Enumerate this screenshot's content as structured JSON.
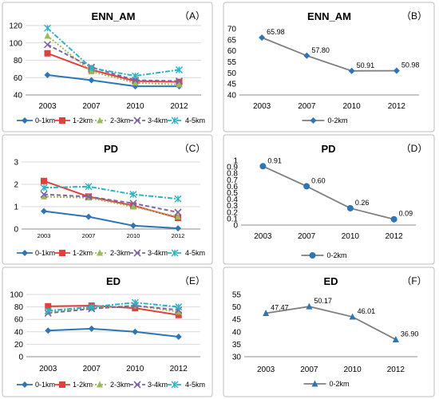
{
  "figure": {
    "width": 550,
    "height": 500
  },
  "chart_data": [
    {
      "panel_label": "（A）",
      "type": "line",
      "title": "ENN_AM",
      "categories": [
        "2003",
        "2007",
        "2010",
        "2012"
      ],
      "ylim": [
        40,
        120
      ],
      "yticks": [
        40,
        60,
        80,
        100,
        120
      ],
      "grid": true,
      "legend": "bottom",
      "series": [
        {
          "name": "0-1km",
          "values": [
            63,
            57,
            50,
            50
          ],
          "color": "#2e75b6",
          "marker": "diamond",
          "dash": "solid"
        },
        {
          "name": "1-2km",
          "values": [
            88,
            69,
            56,
            55
          ],
          "color": "#e0413f",
          "marker": "square",
          "dash": "solid"
        },
        {
          "name": "2-3km",
          "values": [
            108,
            67,
            54,
            52
          ],
          "color": "#9bbb59",
          "marker": "triangle",
          "dash": "dot"
        },
        {
          "name": "3-4km",
          "values": [
            98,
            72,
            57,
            56
          ],
          "color": "#8064a2",
          "marker": "x",
          "dash": "dash"
        },
        {
          "name": "4-5km",
          "values": [
            117,
            71,
            62,
            69
          ],
          "color": "#29b5c6",
          "marker": "star",
          "dash": "dashdot"
        }
      ]
    },
    {
      "panel_label": "（B）",
      "type": "line",
      "title": "ENN_AM",
      "categories": [
        "2003",
        "2007",
        "2010",
        "2012"
      ],
      "ylim": [
        40,
        70
      ],
      "yticks": [
        40,
        45,
        50,
        55,
        60,
        65,
        70
      ],
      "grid": false,
      "legend": "bottom",
      "series": [
        {
          "name": "0-2km",
          "values": [
            65.98,
            57.8,
            50.91,
            50.98
          ],
          "labels": [
            "65.98",
            "57.80",
            "50.91",
            "50.98"
          ],
          "color": "#7f7f7f",
          "marker": "diamond",
          "marker_color": "#2e75b6",
          "dash": "solid"
        }
      ]
    },
    {
      "panel_label": "（C）",
      "type": "line",
      "title": "PD",
      "categories": [
        "2003",
        "2007",
        "2010",
        "2012"
      ],
      "ylim": [
        0,
        3
      ],
      "yticks": [
        0,
        1,
        2,
        3
      ],
      "grid": true,
      "legend": "bottom",
      "series": [
        {
          "name": "0-1km",
          "values": [
            0.8,
            0.55,
            0.15,
            0.03
          ],
          "color": "#2e75b6",
          "marker": "diamond",
          "dash": "solid"
        },
        {
          "name": "1-2km",
          "values": [
            2.15,
            1.45,
            1.05,
            0.5
          ],
          "color": "#e0413f",
          "marker": "square",
          "dash": "solid"
        },
        {
          "name": "2-3km",
          "values": [
            1.45,
            1.4,
            1.0,
            0.55
          ],
          "color": "#9bbb59",
          "marker": "triangle",
          "dash": "dot"
        },
        {
          "name": "3-4km",
          "values": [
            1.55,
            1.45,
            1.15,
            0.75
          ],
          "color": "#8064a2",
          "marker": "x",
          "dash": "dash"
        },
        {
          "name": "4-5km",
          "values": [
            1.85,
            1.9,
            1.55,
            1.35
          ],
          "color": "#29b5c6",
          "marker": "star",
          "dash": "dashdot"
        }
      ]
    },
    {
      "panel_label": "（D）",
      "type": "line",
      "title": "PD",
      "categories": [
        "2003",
        "2007",
        "2010",
        "2012"
      ],
      "ylim": [
        0,
        1
      ],
      "yticks": [
        0,
        0.1,
        0.2,
        0.3,
        0.4,
        0.5,
        0.6,
        0.7,
        0.8,
        0.9,
        1
      ],
      "ytick_labels": [
        "0",
        "0.1",
        "0.2",
        "0.3",
        "0.4",
        "0.5",
        "0.6",
        "0.7",
        "0.8",
        "0.9",
        "1"
      ],
      "grid": false,
      "legend": "bottom",
      "series": [
        {
          "name": "0-2km",
          "values": [
            0.91,
            0.6,
            0.26,
            0.09
          ],
          "labels": [
            "0.91",
            "0.60",
            "0.26",
            "0.09"
          ],
          "color": "#7f7f7f",
          "marker": "circle",
          "marker_color": "#2e75b6",
          "dash": "solid"
        }
      ]
    },
    {
      "panel_label": "（E）",
      "type": "line",
      "title": "ED",
      "categories": [
        "2003",
        "2007",
        "2010",
        "2012"
      ],
      "ylim": [
        0,
        100
      ],
      "yticks": [
        0,
        20,
        40,
        60,
        80,
        100
      ],
      "grid": true,
      "legend": "bottom",
      "series": [
        {
          "name": "0-1km",
          "values": [
            42,
            45,
            40,
            32
          ],
          "color": "#2e75b6",
          "marker": "diamond",
          "dash": "solid"
        },
        {
          "name": "1-2km",
          "values": [
            81,
            82,
            78,
            67
          ],
          "color": "#e0413f",
          "marker": "square",
          "dash": "solid"
        },
        {
          "name": "2-3km",
          "values": [
            72,
            78,
            82,
            72
          ],
          "color": "#9bbb59",
          "marker": "triangle",
          "dash": "dot"
        },
        {
          "name": "3-4km",
          "values": [
            70,
            77,
            82,
            75
          ],
          "color": "#8064a2",
          "marker": "x",
          "dash": "dash"
        },
        {
          "name": "4-5km",
          "values": [
            74,
            80,
            87,
            80
          ],
          "color": "#29b5c6",
          "marker": "star",
          "dash": "dashdot"
        }
      ]
    },
    {
      "panel_label": "（F）",
      "type": "line",
      "title": "ED",
      "categories": [
        "2003",
        "2007",
        "2010",
        "2012"
      ],
      "ylim": [
        30,
        55
      ],
      "yticks": [
        30,
        35,
        40,
        45,
        50,
        55
      ],
      "grid": false,
      "legend": "bottom",
      "series": [
        {
          "name": "0-2km",
          "values": [
            47.47,
            50.17,
            46.01,
            36.9
          ],
          "labels": [
            "47.47",
            "50.17",
            "46.01",
            "36.90"
          ],
          "color": "#7f7f7f",
          "marker": "triangle",
          "marker_color": "#2e75b6",
          "dash": "solid"
        }
      ]
    }
  ]
}
